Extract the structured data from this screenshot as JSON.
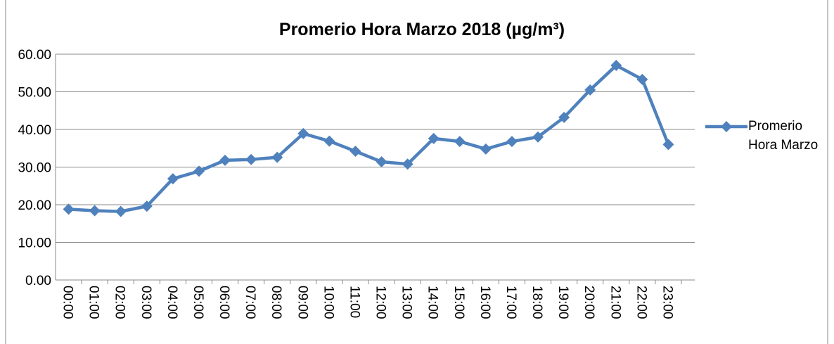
{
  "chart_data": {
    "type": "line",
    "title": "Promerio Hora Marzo 2018 (µg/m³)",
    "categories": [
      "00:00",
      "01:00",
      "02:00",
      "03:00",
      "04:00",
      "05:00",
      "06:00",
      "07:00",
      "08:00",
      "09:00",
      "10:00",
      "11:00",
      "12:00",
      "13:00",
      "14:00",
      "15:00",
      "16:00",
      "17:00",
      "18:00",
      "19:00",
      "20:00",
      "21:00",
      "22:00",
      "23:00"
    ],
    "series": [
      {
        "name": "Promerio Hora Marzo",
        "color": "#4f81bd",
        "values": [
          18.8,
          18.4,
          18.2,
          19.6,
          26.9,
          28.9,
          31.8,
          32.0,
          32.6,
          38.9,
          36.9,
          34.2,
          31.4,
          30.8,
          37.6,
          36.8,
          34.8,
          36.8,
          38.0,
          43.2,
          50.5,
          57.0,
          53.3,
          36.0
        ]
      }
    ],
    "ylim": [
      0,
      60
    ],
    "yticks": [
      {
        "value": 0,
        "label": "0.00"
      },
      {
        "value": 10,
        "label": "10.00"
      },
      {
        "value": 20,
        "label": "20.00"
      },
      {
        "value": 30,
        "label": "30.00"
      },
      {
        "value": 40,
        "label": "40.00"
      },
      {
        "value": 50,
        "label": "50.00"
      },
      {
        "value": 60,
        "label": "60.00"
      }
    ],
    "grid": true,
    "legend": "right"
  }
}
